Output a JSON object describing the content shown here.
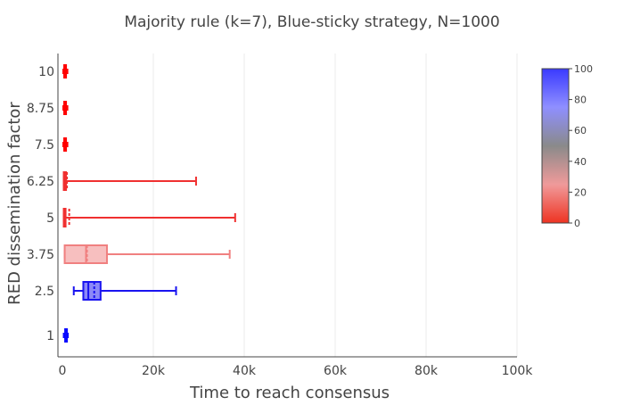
{
  "chart_data": {
    "type": "box",
    "title": "Majority rule (k=7), Blue-sticky strategy, N=1000",
    "xlabel": "Time to reach consensus",
    "ylabel": "RED dissemination factor",
    "xlim": [
      0,
      100000
    ],
    "x_ticks": [
      {
        "value": 0,
        "label": "0"
      },
      {
        "value": 20000,
        "label": "20k"
      },
      {
        "value": 40000,
        "label": "40k"
      },
      {
        "value": 60000,
        "label": "60k"
      },
      {
        "value": 80000,
        "label": "80k"
      },
      {
        "value": 100000,
        "label": "100k"
      }
    ],
    "y_ticks": [
      1,
      2.5,
      3.75,
      5,
      6.25,
      7.5,
      8.75,
      10
    ],
    "grid": {
      "x": true,
      "y": false
    },
    "series": [
      {
        "y": 1,
        "min": 300,
        "q1": 600,
        "median": 800,
        "mean": 800,
        "q3": 1000,
        "max": 1200,
        "colorscale_value": 100,
        "color": "#0a0aff"
      },
      {
        "y": 2.5,
        "min": 2500,
        "q1": 4600,
        "median": 5700,
        "mean": 7000,
        "q3": 8400,
        "max": 25000,
        "colorscale_value": 86,
        "color": "#1a14f0"
      },
      {
        "y": 3.75,
        "min": 500,
        "q1": 500,
        "median": 5200,
        "mean": 5400,
        "q3": 9800,
        "max": 36800,
        "colorscale_value": 18,
        "color": "#f08080"
      },
      {
        "y": 5,
        "min": 300,
        "q1": 300,
        "median": 600,
        "mean": 1500,
        "q3": 700,
        "max": 38000,
        "colorscale_value": 2,
        "color": "#f03030"
      },
      {
        "y": 6.25,
        "min": 300,
        "q1": 300,
        "median": 600,
        "mean": 1000,
        "q3": 800,
        "max": 29400,
        "colorscale_value": 2,
        "color": "#f03030"
      },
      {
        "y": 7.5,
        "min": 200,
        "q1": 400,
        "median": 600,
        "mean": 650,
        "q3": 800,
        "max": 1100,
        "colorscale_value": 0,
        "color": "#ff0000"
      },
      {
        "y": 8.75,
        "min": 200,
        "q1": 400,
        "median": 600,
        "mean": 650,
        "q3": 800,
        "max": 1100,
        "colorscale_value": 0,
        "color": "#ff0000"
      },
      {
        "y": 10,
        "min": 200,
        "q1": 400,
        "median": 600,
        "mean": 650,
        "q3": 800,
        "max": 1100,
        "colorscale_value": 0,
        "color": "#ff0000"
      }
    ],
    "colorbar": {
      "min": 0,
      "max": 100,
      "ticks": [
        0,
        20,
        40,
        60,
        80,
        100
      ],
      "colors": [
        "#ee3322",
        "#f09a9a",
        "#8a8a8a",
        "#8f8fff",
        "#3a3aff"
      ]
    }
  }
}
